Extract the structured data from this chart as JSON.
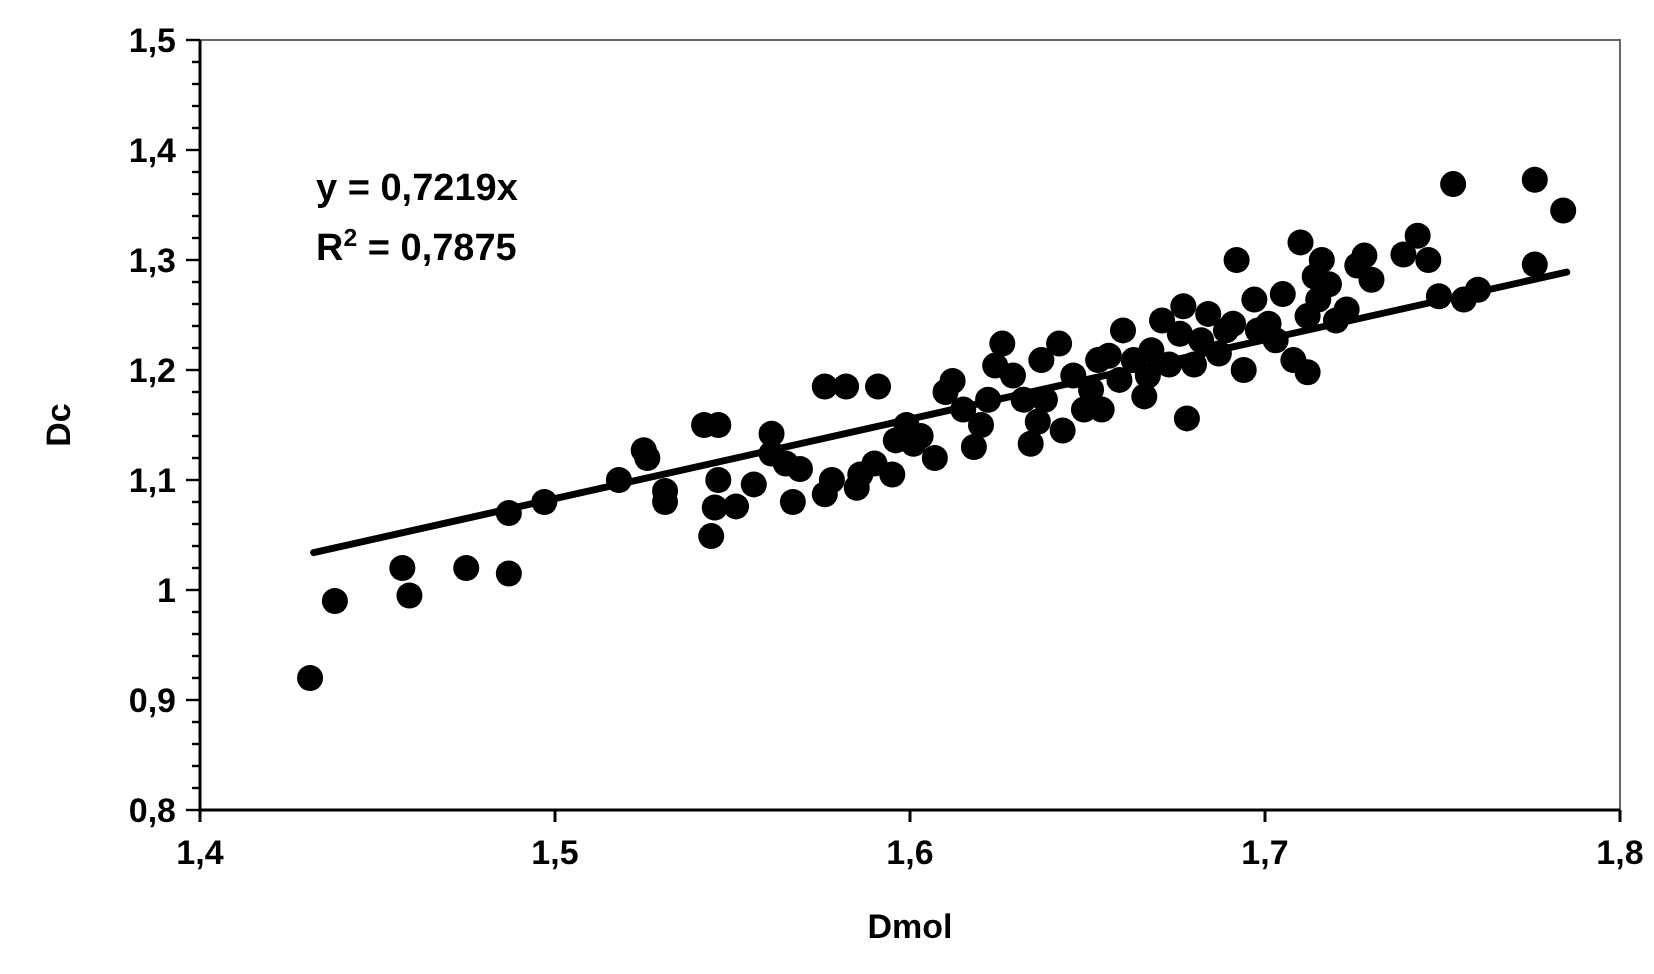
{
  "chart_data": {
    "type": "scatter",
    "xlabel": "Dmol",
    "ylabel": "Dc",
    "grid": false,
    "annotations": [
      "y = 0,7219x",
      "R$^{2}$ = 0,7875"
    ],
    "xlim": [
      1.4,
      1.8
    ],
    "ylim": [
      0.8,
      1.5
    ],
    "xticks": [
      {
        "value": 1.4,
        "label": "1,4"
      },
      {
        "value": 1.5,
        "label": "1,5"
      },
      {
        "value": 1.6,
        "label": "1,6"
      },
      {
        "value": 1.7,
        "label": "1,7"
      },
      {
        "value": 1.8,
        "label": "1,8"
      }
    ],
    "yticks": [
      {
        "value": 0.8,
        "label": "0,8"
      },
      {
        "value": 0.82,
        "label": null
      },
      {
        "value": 0.84,
        "label": null
      },
      {
        "value": 0.86,
        "label": null
      },
      {
        "value": 0.88,
        "label": null
      },
      {
        "value": 0.9,
        "label": "0,9"
      },
      {
        "value": 0.92,
        "label": null
      },
      {
        "value": 0.94,
        "label": null
      },
      {
        "value": 0.96,
        "label": null
      },
      {
        "value": 0.98,
        "label": null
      },
      {
        "value": 1,
        "label": "1"
      },
      {
        "value": 1.02,
        "label": null
      },
      {
        "value": 1.04,
        "label": null
      },
      {
        "value": 1.06,
        "label": null
      },
      {
        "value": 1.08,
        "label": null
      },
      {
        "value": 1.1,
        "label": "1,1"
      },
      {
        "value": 1.12,
        "label": null
      },
      {
        "value": 1.14,
        "label": null
      },
      {
        "value": 1.16,
        "label": null
      },
      {
        "value": 1.18,
        "label": null
      },
      {
        "value": 1.2,
        "label": "1,2"
      },
      {
        "value": 1.22,
        "label": null
      },
      {
        "value": 1.24,
        "label": null
      },
      {
        "value": 1.26,
        "label": null
      },
      {
        "value": 1.28,
        "label": null
      },
      {
        "value": 1.3,
        "label": "1,3"
      },
      {
        "value": 1.32,
        "label": null
      },
      {
        "value": 1.34,
        "label": null
      },
      {
        "value": 1.36,
        "label": null
      },
      {
        "value": 1.38,
        "label": null
      },
      {
        "value": 1.4,
        "label": "1,4"
      },
      {
        "value": 1.42,
        "label": null
      },
      {
        "value": 1.44,
        "label": null
      },
      {
        "value": 1.46,
        "label": null
      },
      {
        "value": 1.48,
        "label": null
      },
      {
        "value": 1.5,
        "label": "1,5"
      }
    ],
    "series": [
      {
        "color": "#000000",
        "marker": "circle",
        "x": [
          1.431,
          1.438,
          1.457,
          1.459,
          1.475,
          1.487,
          1.487,
          1.497,
          1.518,
          1.525,
          1.526,
          1.531,
          1.531,
          1.542,
          1.546,
          1.544,
          1.545,
          1.546,
          1.551,
          1.556,
          1.561,
          1.561,
          1.565,
          1.567,
          1.569,
          1.576,
          1.576,
          1.582,
          1.591,
          1.578,
          1.585,
          1.586,
          1.59,
          1.595,
          1.596,
          1.599,
          1.601,
          1.603,
          1.607,
          1.61,
          1.612,
          1.615,
          1.618,
          1.62,
          1.622,
          1.624,
          1.626,
          1.629,
          1.632,
          1.634,
          1.636,
          1.637,
          1.638,
          1.642,
          1.643,
          1.646,
          1.649,
          1.651,
          1.653,
          1.654,
          1.656,
          1.659,
          1.66,
          1.663,
          1.666,
          1.667,
          1.668,
          1.671,
          1.673,
          1.676,
          1.677,
          1.678,
          1.68,
          1.682,
          1.684,
          1.687,
          1.689,
          1.691,
          1.694,
          1.692,
          1.697,
          1.698,
          1.701,
          1.703,
          1.705,
          1.708,
          1.71,
          1.712,
          1.714,
          1.715,
          1.716,
          1.718,
          1.72,
          1.723,
          1.726,
          1.728,
          1.73,
          1.739,
          1.743,
          1.746,
          1.749,
          1.753,
          1.756,
          1.76,
          1.776,
          1.776,
          1.784,
          1.712
        ],
        "values": [
          0.92,
          0.99,
          1.02,
          0.995,
          1.02,
          1.015,
          1.07,
          1.08,
          1.1,
          1.127,
          1.12,
          1.09,
          1.08,
          1.15,
          1.15,
          1.049,
          1.075,
          1.1,
          1.076,
          1.096,
          1.142,
          1.124,
          1.115,
          1.08,
          1.11,
          1.087,
          1.185,
          1.185,
          1.185,
          1.1,
          1.093,
          1.105,
          1.115,
          1.105,
          1.136,
          1.15,
          1.133,
          1.14,
          1.12,
          1.18,
          1.19,
          1.164,
          1.13,
          1.15,
          1.173,
          1.204,
          1.224,
          1.195,
          1.173,
          1.133,
          1.153,
          1.209,
          1.173,
          1.224,
          1.145,
          1.195,
          1.164,
          1.182,
          1.209,
          1.164,
          1.213,
          1.191,
          1.236,
          1.209,
          1.176,
          1.195,
          1.218,
          1.245,
          1.205,
          1.233,
          1.258,
          1.156,
          1.205,
          1.227,
          1.251,
          1.215,
          1.236,
          1.242,
          1.2,
          1.3,
          1.264,
          1.236,
          1.242,
          1.227,
          1.269,
          1.209,
          1.316,
          1.249,
          1.285,
          1.264,
          1.3,
          1.278,
          1.245,
          1.255,
          1.295,
          1.304,
          1.282,
          1.305,
          1.322,
          1.3,
          1.267,
          1.369,
          1.264,
          1.273,
          1.296,
          1.373,
          1.345,
          1.198
        ]
      },
      {
        "type": "line",
        "color": "#000000",
        "marker": "none",
        "x": [
          1.432,
          1.785
        ],
        "values": [
          1.034,
          1.289
        ]
      }
    ]
  }
}
